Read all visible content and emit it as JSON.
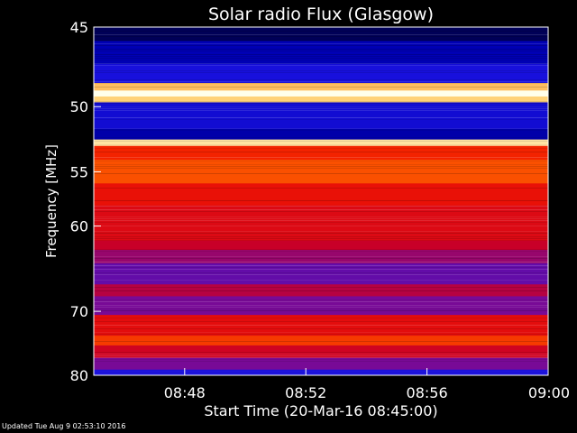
{
  "chart_data": {
    "type": "heatmap",
    "title": "Solar radio Flux (Glasgow)",
    "xlabel": "Start Time (20-Mar-16 08:45:00)",
    "ylabel": "Frequency [MHz]",
    "x_ticks": [
      "08:48",
      "08:52",
      "08:56",
      "09:00"
    ],
    "x_tick_minutes": [
      48,
      52,
      56,
      60
    ],
    "x_range_minutes": [
      45,
      60
    ],
    "y_ticks": [
      45,
      50,
      55,
      60,
      70,
      80
    ],
    "y_range": [
      45,
      80
    ],
    "y_scale": "reciprocal",
    "bands": [
      {
        "from": 44.5,
        "to": 45.8,
        "level": 0.05
      },
      {
        "from": 45.8,
        "to": 47.2,
        "level": 0.22
      },
      {
        "from": 47.2,
        "to": 48.4,
        "level": 0.3
      },
      {
        "from": 48.4,
        "to": 48.9,
        "level": 0.9
      },
      {
        "from": 48.9,
        "to": 49.3,
        "level": 1.0
      },
      {
        "from": 49.3,
        "to": 49.7,
        "level": 0.92
      },
      {
        "from": 49.7,
        "to": 51.6,
        "level": 0.28
      },
      {
        "from": 51.6,
        "to": 52.4,
        "level": 0.2
      },
      {
        "from": 52.4,
        "to": 52.9,
        "level": 0.95
      },
      {
        "from": 52.9,
        "to": 54.0,
        "level": 0.72
      },
      {
        "from": 54.0,
        "to": 56.0,
        "level": 0.78
      },
      {
        "from": 56.0,
        "to": 58.0,
        "level": 0.68
      },
      {
        "from": 58.0,
        "to": 61.5,
        "level": 0.64
      },
      {
        "from": 61.5,
        "to": 62.5,
        "level": 0.58
      },
      {
        "from": 62.5,
        "to": 64.0,
        "level": 0.5
      },
      {
        "from": 64.0,
        "to": 66.5,
        "level": 0.42
      },
      {
        "from": 66.5,
        "to": 68.0,
        "level": 0.55
      },
      {
        "from": 68.0,
        "to": 70.5,
        "level": 0.45
      },
      {
        "from": 70.5,
        "to": 73.5,
        "level": 0.66
      },
      {
        "from": 73.5,
        "to": 75.0,
        "level": 0.75
      },
      {
        "from": 75.0,
        "to": 77.0,
        "level": 0.6
      },
      {
        "from": 77.0,
        "to": 79.0,
        "level": 0.45
      },
      {
        "from": 79.0,
        "to": 80.5,
        "level": 0.32
      }
    ],
    "colors": {
      "background": "#000000",
      "axis": "#ffffff"
    }
  },
  "footer": {
    "updated": "Updated Tue Aug  9 02:53:10 2016"
  }
}
